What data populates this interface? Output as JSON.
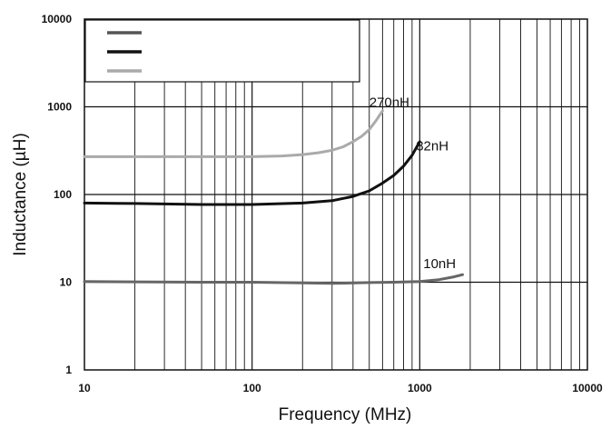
{
  "chart_data": {
    "type": "line",
    "title": "",
    "xlabel": "Frequency (MHz)",
    "ylabel": "Inductance (µH)",
    "xscale": "log",
    "yscale": "log",
    "xlim": [
      10,
      10000
    ],
    "ylim": [
      1,
      10000
    ],
    "grid": true,
    "x_ticks": [
      {
        "value": 10,
        "label": "10"
      },
      {
        "value": 100,
        "label": "100"
      },
      {
        "value": 1000,
        "label": "1000"
      },
      {
        "value": 10000,
        "label": "10000"
      }
    ],
    "y_ticks": [
      {
        "value": 1,
        "label": "1"
      },
      {
        "value": 10,
        "label": "10"
      },
      {
        "value": 100,
        "label": "100"
      },
      {
        "value": 1000,
        "label": "1000"
      },
      {
        "value": 10000,
        "label": "10000"
      }
    ],
    "legend": {
      "placement": "top-left",
      "entries": [
        {
          "color": "#555555",
          "label": ""
        },
        {
          "color": "#111111",
          "label": ""
        },
        {
          "color": "#aaaaaa",
          "label": ""
        }
      ]
    },
    "series": [
      {
        "name": "270nH",
        "color": "#aaaaaa",
        "label_at": {
          "x": 500,
          "y": 1000
        },
        "x": [
          10,
          20,
          50,
          100,
          150,
          200,
          250,
          300,
          350,
          400,
          450,
          500,
          550,
          600
        ],
        "y": [
          270,
          270,
          270,
          270,
          275,
          285,
          300,
          320,
          350,
          400,
          460,
          550,
          700,
          900
        ]
      },
      {
        "name": "82nH",
        "color": "#111111",
        "label_at": {
          "x": 950,
          "y": 320
        },
        "x": [
          10,
          20,
          50,
          100,
          200,
          300,
          400,
          500,
          600,
          700,
          800,
          900,
          1000
        ],
        "y": [
          80,
          79,
          77,
          77,
          80,
          85,
          95,
          110,
          135,
          165,
          210,
          280,
          400
        ]
      },
      {
        "name": "10nH",
        "color": "#666666",
        "label_at": {
          "x": 1050,
          "y": 14.5
        },
        "x": [
          10,
          20,
          50,
          100,
          200,
          300,
          500,
          700,
          1000,
          1300,
          1600,
          1800
        ],
        "y": [
          10.2,
          10.1,
          10.0,
          10.0,
          9.8,
          9.7,
          9.9,
          10.0,
          10.2,
          10.7,
          11.5,
          12.2
        ]
      }
    ]
  }
}
